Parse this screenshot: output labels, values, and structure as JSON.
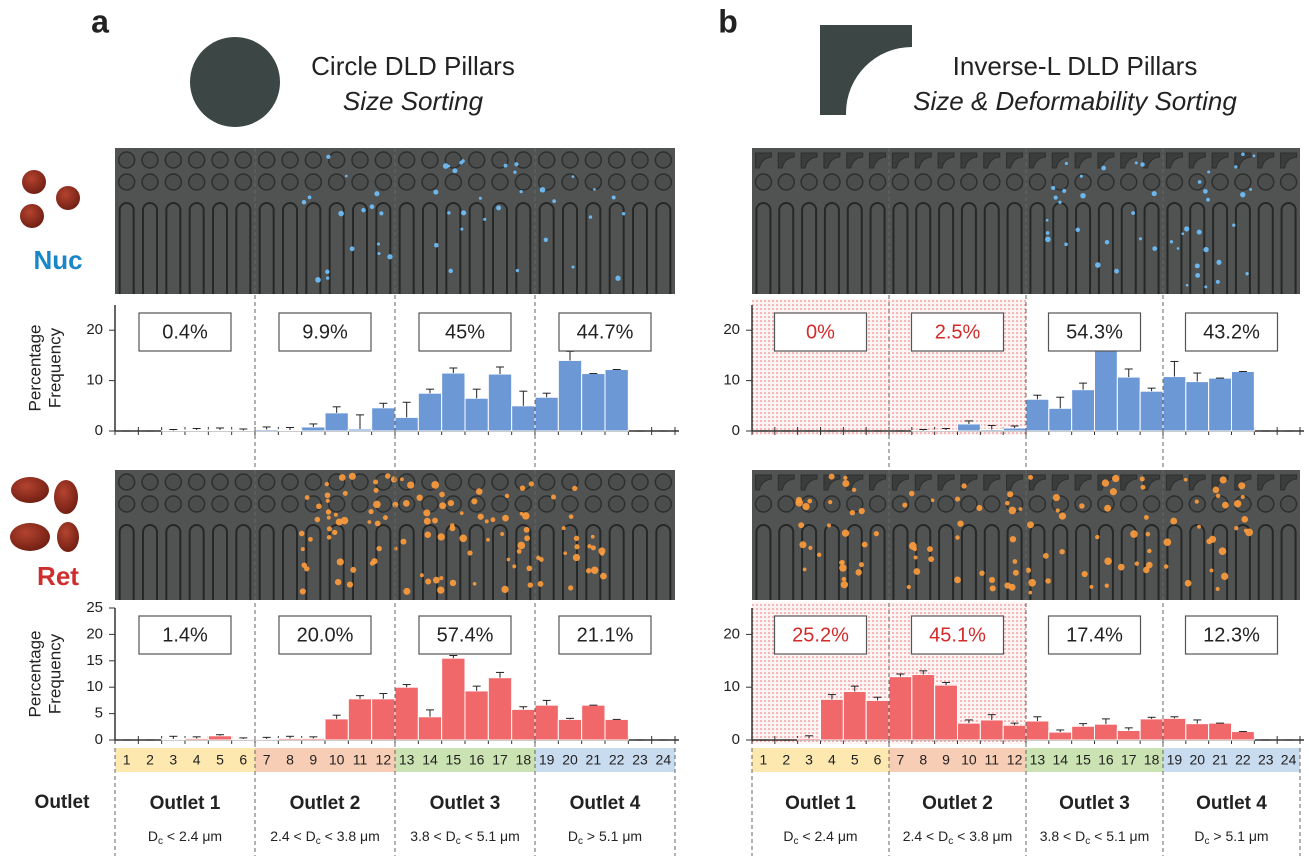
{
  "figure": {
    "outlet_heading": "Outlet",
    "rows": [
      {
        "label": "Nuc",
        "color": "#1a86c7"
      },
      {
        "label": "Ret",
        "color": "#cf2e2e"
      }
    ]
  },
  "chart_data": [
    {
      "type": "bar",
      "label": "a",
      "title": "Circle DLD Pillars",
      "subtitle": "Size Sorting",
      "categories": [
        "1",
        "2",
        "3",
        "4",
        "5",
        "6",
        "7",
        "8",
        "9",
        "10",
        "11",
        "12",
        "13",
        "14",
        "15",
        "16",
        "17",
        "18",
        "19",
        "20",
        "21",
        "22",
        "23",
        "24"
      ],
      "outlets": [
        {
          "name": "Outlet 1",
          "color": "#fde8b0",
          "range": {
            "symbol": "D",
            "sub": "c",
            "after": " < 2.4 μm"
          }
        },
        {
          "name": "Outlet 2",
          "color": "#f8cdb6",
          "range": {
            "before": "2.4 < ",
            "symbol": "D",
            "sub": "c",
            "after": " < 3.8 μm"
          }
        },
        {
          "name": "Outlet 3",
          "color": "#cbe3b2",
          "range": {
            "before": "3.8 < ",
            "symbol": "D",
            "sub": "c",
            "after": " < 5.1 μm"
          }
        },
        {
          "name": "Outlet 4",
          "color": "#c8dbef",
          "range": {
            "symbol": "D",
            "sub": "c",
            "after": " > 5.1 μm"
          }
        }
      ],
      "plots": [
        {
          "ylim": [
            0,
            25
          ],
          "yticks": [
            0,
            10,
            20
          ],
          "ylabel": [
            "Percentage",
            "Frequency"
          ],
          "series": [
            {
              "color": "#6c98d6",
              "values": [
                0,
                0,
                0.1,
                0.2,
                0.2,
                0.1,
                0.3,
                0.2,
                0.8,
                3.6,
                0.4,
                4.6,
                2.7,
                7.5,
                11.5,
                6.5,
                11.3,
                5,
                6.7,
                14,
                11.4,
                12.2,
                0,
                0
              ],
              "errors": [
                0,
                0,
                0.2,
                0.3,
                0.4,
                0.3,
                0.5,
                0.5,
                0.6,
                1.2,
                2.8,
                0.9,
                3,
                0.8,
                1,
                1.8,
                1.4,
                2.9,
                0.8,
                1.8,
                0,
                0,
                0,
                0
              ]
            }
          ],
          "totals": [
            "0.4%",
            "9.9%",
            "45%",
            "44.7%"
          ]
        },
        {
          "ylim": [
            0,
            25
          ],
          "yticks": [
            0,
            5,
            10,
            15,
            20,
            25
          ],
          "ylabel": [
            "Percentage",
            "Frequency"
          ],
          "series": [
            {
              "color": "#f0686a",
              "values": [
                0,
                0,
                0.2,
                0.3,
                0.8,
                0.2,
                0.2,
                0.3,
                0.3,
                4,
                7.8,
                7.8,
                10,
                4.4,
                15.5,
                9.3,
                11.8,
                5.8,
                6.6,
                3.9,
                6.6,
                3.9,
                0,
                0
              ],
              "errors": [
                0,
                0,
                0.5,
                0.3,
                0.2,
                0.2,
                0.3,
                0.4,
                0.3,
                0.7,
                0.6,
                1,
                0.5,
                1.3,
                0.5,
                0.9,
                1,
                0.5,
                0.9,
                0.2,
                0,
                0,
                0,
                0
              ]
            }
          ],
          "totals": [
            "1.4%",
            "20.0%",
            "57.4%",
            "21.1%"
          ]
        }
      ]
    },
    {
      "type": "bar",
      "label": "b",
      "title": "Inverse-L DLD Pillars",
      "subtitle": "Size & Deformability Sorting",
      "categories": [
        "1",
        "2",
        "3",
        "4",
        "5",
        "6",
        "7",
        "8",
        "9",
        "10",
        "11",
        "12",
        "13",
        "14",
        "15",
        "16",
        "17",
        "18",
        "19",
        "20",
        "21",
        "22",
        "23",
        "24"
      ],
      "outlets": [
        {
          "name": "Outlet 1",
          "color": "#fde8b0",
          "range": {
            "symbol": "D",
            "sub": "c",
            "after": " < 2.4 μm"
          }
        },
        {
          "name": "Outlet 2",
          "color": "#f8cdb6",
          "range": {
            "before": "2.4 < ",
            "symbol": "D",
            "sub": "c",
            "after": " < 3.8 μm"
          }
        },
        {
          "name": "Outlet 3",
          "color": "#cbe3b2",
          "range": {
            "before": "3.8 < ",
            "symbol": "D",
            "sub": "c",
            "after": " < 5.1 μm"
          }
        },
        {
          "name": "Outlet 4",
          "color": "#c8dbef",
          "range": {
            "symbol": "D",
            "sub": "c",
            "after": " > 5.1 μm"
          }
        }
      ],
      "plots": [
        {
          "ylim": [
            0,
            25
          ],
          "yticks": [
            0,
            10,
            20
          ],
          "shade": {
            "from": "1",
            "to": "12",
            "color": "#e8403f"
          },
          "series": [
            {
              "color": "#6c98d6",
              "values": [
                0,
                0,
                0,
                0,
                0,
                0,
                0,
                0.1,
                0.2,
                1.4,
                0.3,
                0.6,
                6.3,
                4.5,
                8.2,
                16,
                10.7,
                7.9,
                10.8,
                9.8,
                10.5,
                11.8,
                0,
                0
              ],
              "errors": [
                0,
                0,
                0,
                0,
                0,
                0,
                0,
                0.2,
                0.3,
                0.6,
                0.8,
                0.4,
                0.8,
                2.2,
                1.3,
                1.2,
                1.6,
                0.6,
                3,
                1.7,
                0,
                0,
                0,
                0
              ]
            }
          ],
          "totals": [
            "0%",
            "2.5%",
            "54.3%",
            "43.2%"
          ],
          "totals_colors": [
            "#d42a2a",
            "#d42a2a",
            "#222222",
            "#222222"
          ]
        },
        {
          "ylim": [
            0,
            25
          ],
          "yticks": [
            0,
            10,
            20
          ],
          "shade": {
            "from": "1",
            "to": "12",
            "color": "#e8403f"
          },
          "series": [
            {
              "color": "#f0686a",
              "values": [
                0,
                0,
                0.3,
                7.7,
                9.2,
                7.5,
                12,
                12.4,
                10.4,
                3.2,
                3.8,
                2.8,
                3.6,
                1.5,
                2.6,
                3,
                1.8,
                4,
                4.1,
                3.1,
                3.2,
                1.6,
                0,
                0
              ],
              "errors": [
                0,
                0,
                0.5,
                0.9,
                1,
                0.6,
                0.5,
                0.7,
                0.5,
                0.6,
                1,
                0.4,
                0.8,
                0.4,
                0.5,
                1,
                0.5,
                0.3,
                0.3,
                0.7,
                0,
                0,
                0,
                0
              ]
            }
          ],
          "totals": [
            "25.2%",
            "45.1%",
            "17.4%",
            "12.3%"
          ],
          "totals_colors": [
            "#d42a2a",
            "#d42a2a",
            "#222222",
            "#222222"
          ]
        }
      ]
    }
  ]
}
